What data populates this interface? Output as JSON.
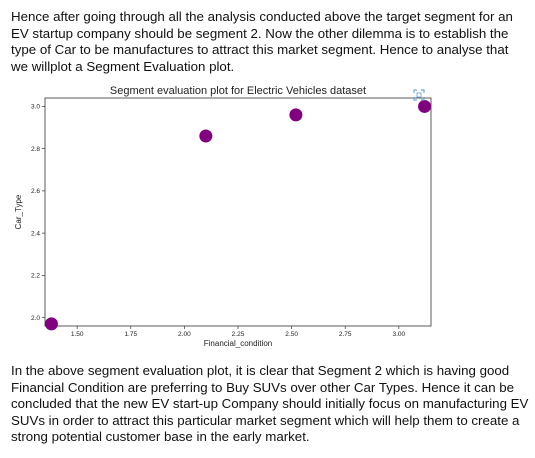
{
  "paragraphs": {
    "top": "Hence after going through all the analysis conducted above the target segment for an EV startup company should be segment 2. Now the other dilemma is to establish the type of Car to be manufactures to attract this market segment. Hence to analyse that we willplot a Segment Evaluation plot.",
    "bottom": "In the above segment evaluation plot, it is clear that Segment 2 which is having good Financial Condition are preferring to Buy SUVs over other Car Types. Hence it can be concluded that the new EV start-up Company should initially focus on manufacturing EV SUVs in order to attract this particular market segment which will help them to create a strong potential customer base in the early market."
  },
  "colors": {
    "marker": "#800080",
    "icon": "#6fa8dc"
  },
  "icons": {
    "expand": "expand-icon"
  },
  "chart_data": {
    "type": "scatter",
    "title": "Segment evaluation plot for Electric Vehicles dataset",
    "xlabel": "Financial_condition",
    "ylabel": "Car_Type",
    "xlim": [
      1.35,
      3.15
    ],
    "ylim": [
      1.96,
      3.04
    ],
    "x_ticks": [
      "1.50",
      "1.75",
      "2.00",
      "2.25",
      "2.50",
      "2.75",
      "3.00"
    ],
    "y_ticks": [
      "2.0",
      "2.2",
      "2.4",
      "2.6",
      "2.8",
      "3.0"
    ],
    "x_tick_values": [
      1.5,
      1.75,
      2.0,
      2.25,
      2.5,
      2.75,
      3.0
    ],
    "y_tick_values": [
      2.0,
      2.2,
      2.4,
      2.6,
      2.8,
      3.0
    ],
    "points": [
      {
        "x": 1.38,
        "y": 1.97
      },
      {
        "x": 2.1,
        "y": 2.86
      },
      {
        "x": 2.52,
        "y": 2.96
      },
      {
        "x": 3.12,
        "y": 3.0
      }
    ],
    "grid": false,
    "legend": "none"
  }
}
